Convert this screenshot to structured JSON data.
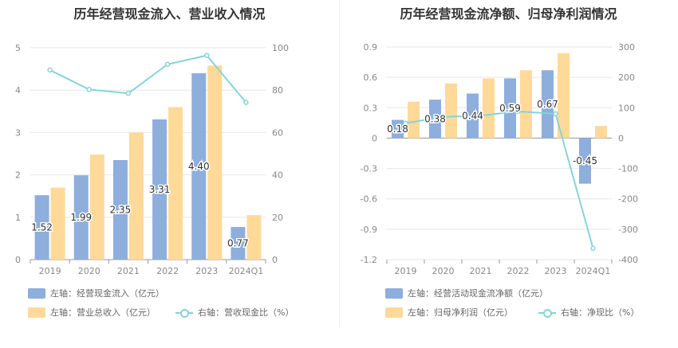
{
  "colors": {
    "blue": "#8eaedc",
    "orange": "#ffd998",
    "cyan": "#87d3da",
    "grid": "#e6e6e6",
    "axis_text": "#888888"
  },
  "chart_data": [
    {
      "type": "bar",
      "title": "历年经营现金流入、营业收入情况",
      "categories": [
        "2019",
        "2020",
        "2021",
        "2022",
        "2023",
        "2024Q1"
      ],
      "y_left": {
        "ylim": [
          0,
          5
        ],
        "ticks": [
          "0",
          "1",
          "2",
          "3",
          "4",
          "5"
        ]
      },
      "y_right": {
        "ylim": [
          0,
          100
        ],
        "ticks": [
          "0",
          "20",
          "40",
          "60",
          "80",
          "100"
        ]
      },
      "series": [
        {
          "name": "左轴：经营现金流入（亿元）",
          "kind": "bar",
          "axis": "left",
          "color": "#8eaedc",
          "values": [
            1.52,
            1.99,
            2.35,
            3.31,
            4.4,
            0.77
          ],
          "labels": [
            "1.52",
            "1.99",
            "2.35",
            "3.31",
            "4.40",
            "0.77"
          ]
        },
        {
          "name": "左轴：营业总收入（亿元）",
          "kind": "bar",
          "axis": "left",
          "color": "#ffd998",
          "values": [
            1.7,
            2.48,
            3.0,
            3.6,
            4.58,
            1.05
          ]
        },
        {
          "name": "右轴：营收现金比（%）",
          "kind": "line",
          "axis": "right",
          "color": "#87d3da",
          "values": [
            89.5,
            80.3,
            78.5,
            92.2,
            96.4,
            74.2
          ]
        }
      ]
    },
    {
      "type": "bar",
      "title": "历年经营现金流净额、归母净利润情况",
      "categories": [
        "2019",
        "2020",
        "2021",
        "2022",
        "2023",
        "2024Q1"
      ],
      "y_left": {
        "ylim": [
          -1.2,
          0.9
        ],
        "ticks": [
          "-1.2",
          "-0.9",
          "-0.6",
          "-0.3",
          "0",
          "0.3",
          "0.6",
          "0.9"
        ]
      },
      "y_right": {
        "ylim": [
          -400,
          300
        ],
        "ticks": [
          "-400",
          "-300",
          "-200",
          "-100",
          "0",
          "100",
          "200",
          "300"
        ]
      },
      "series": [
        {
          "name": "左轴：经营活动现金流净额（亿元）",
          "kind": "bar",
          "axis": "left",
          "color": "#8eaedc",
          "values": [
            0.18,
            0.38,
            0.44,
            0.59,
            0.67,
            -0.45
          ],
          "labels": [
            "0.18",
            "0.38",
            "0.44",
            "0.59",
            "0.67",
            "-0.45"
          ]
        },
        {
          "name": "左轴：归母净利润（亿元）",
          "kind": "bar",
          "axis": "left",
          "color": "#ffd998",
          "values": [
            0.36,
            0.54,
            0.59,
            0.67,
            0.84,
            0.12
          ]
        },
        {
          "name": "右轴：净现比（%）",
          "kind": "line",
          "axis": "right",
          "color": "#87d3da",
          "values": [
            49,
            70,
            74,
            88,
            80,
            -363
          ]
        }
      ]
    }
  ]
}
